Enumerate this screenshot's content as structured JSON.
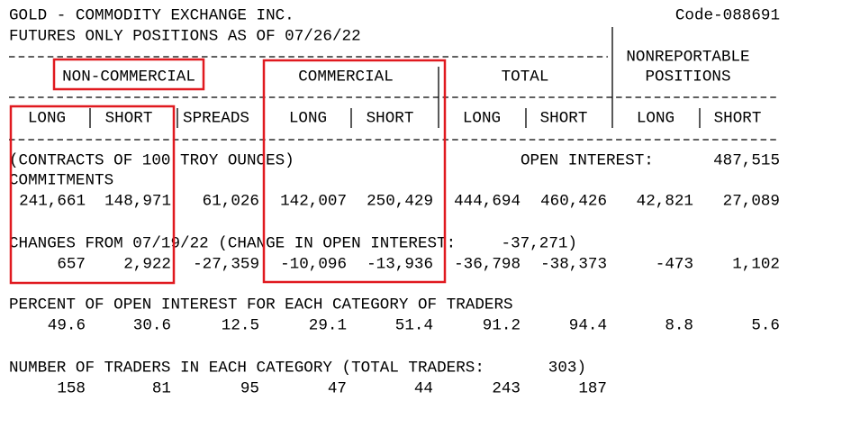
{
  "header": {
    "title": "GOLD - COMMODITY EXCHANGE INC.",
    "code": "Code-088691",
    "subtitle": "FUTURES ONLY POSITIONS AS OF 07/26/22"
  },
  "groups": {
    "non_commercial": "NON-COMMERCIAL",
    "commercial": "COMMERCIAL",
    "total": "TOTAL",
    "nonreportable": [
      "NONREPORTABLE",
      "POSITIONS"
    ]
  },
  "columns": [
    "LONG",
    "SHORT",
    "SPREADS",
    "LONG",
    "SHORT",
    "LONG",
    "SHORT",
    "LONG",
    "SHORT"
  ],
  "units": "(CONTRACTS OF 100 TROY OUNCES)",
  "open_interest": {
    "label": "OPEN INTEREST:",
    "value": "487,515"
  },
  "commitments": {
    "label": "COMMITMENTS",
    "values": [
      "241,661",
      "148,971",
      "61,026",
      "142,007",
      "250,429",
      "444,694",
      "460,426",
      "42,821",
      "27,089"
    ]
  },
  "changes": {
    "label": "CHANGES FROM 07/19/22 (CHANGE IN OPEN INTEREST:",
    "oi_change": "-37,271)",
    "values": [
      "657",
      "2,922",
      "-27,359",
      "-10,096",
      "-13,936",
      "-36,798",
      "-38,373",
      "-473",
      "1,102"
    ]
  },
  "percent": {
    "label": "PERCENT OF OPEN INTEREST FOR EACH CATEGORY OF TRADERS",
    "values": [
      "49.6",
      "30.6",
      "12.5",
      "29.1",
      "51.4",
      "91.2",
      "94.4",
      "8.8",
      "5.6"
    ]
  },
  "traders": {
    "label": "NUMBER OF TRADERS IN EACH CATEGORY (TOTAL TRADERS:",
    "total": "303)",
    "values": [
      "158",
      "81",
      "95",
      "47",
      "44",
      "243",
      "187"
    ]
  }
}
